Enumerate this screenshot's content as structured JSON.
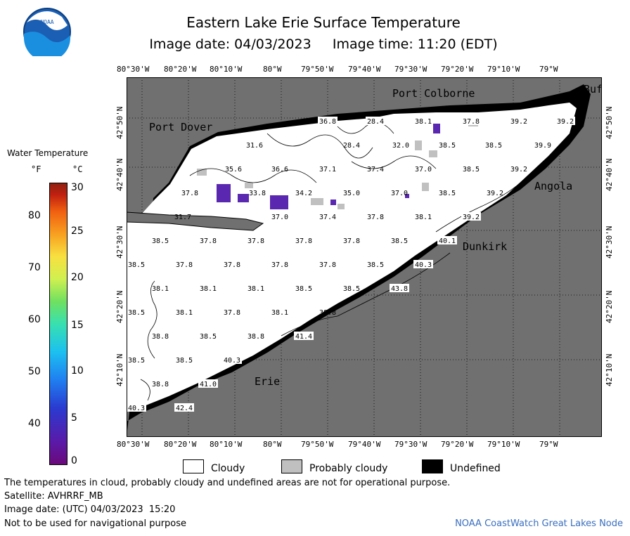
{
  "header": {
    "title": "Eastern Lake Erie Surface Temperature",
    "image_date": "Image date: 04/03/2023",
    "image_time": "Image time: 11:20 (EDT)"
  },
  "logo": {
    "text": "NOAA",
    "icon": "noaa-logo-icon"
  },
  "map": {
    "lon_labels": [
      "80°30'W",
      "80°20'W",
      "80°10'W",
      "80°W",
      "79°50'W",
      "79°40'W",
      "79°30'W",
      "79°20'W",
      "79°10'W",
      "79°W"
    ],
    "lat_labels": [
      "42°50'N",
      "42°40'N",
      "42°30'N",
      "42°20'N",
      "42°10'N"
    ],
    "places": {
      "port_colborne": "Port Colborne",
      "port_dover": "Port Dover",
      "buffalo": "Buf",
      "angola": "Angola",
      "dunkirk": "Dunkirk",
      "erie": "Erie"
    },
    "colors": {
      "land": "#707070",
      "cloud": "#ffffff",
      "probably_cloudy": "#c0c0c0",
      "undefined": "#000000",
      "cold_pixel": "#5a28b0"
    }
  },
  "temperature_labels": {
    "row1": [
      "36.8",
      "28.4",
      "38.1",
      "37.8",
      "39.2",
      "39.2"
    ],
    "row2": [
      "31.6",
      "28.4",
      "32.0",
      "38.5",
      "38.5",
      "39.9"
    ],
    "row3": [
      "35.6",
      "36.6",
      "37.1",
      "37.4",
      "37.0",
      "38.5",
      "39.2"
    ],
    "row4": [
      "37.8",
      "33.8",
      "34.2",
      "35.0",
      "37.0",
      "38.5",
      "39.2"
    ],
    "row5": [
      "31.7",
      "37.0",
      "37.4",
      "37.8",
      "38.1",
      "39.2"
    ],
    "row6": [
      "38.5",
      "37.8",
      "37.8",
      "37.8",
      "37.8",
      "38.5",
      "40.1"
    ],
    "row7": [
      "38.5",
      "37.8",
      "37.8",
      "37.8",
      "37.8",
      "38.5",
      "40.3"
    ],
    "row8": [
      "38.1",
      "38.1",
      "38.1",
      "38.5",
      "38.5",
      "43.8"
    ],
    "row9": [
      "38.5",
      "38.1",
      "37.8",
      "38.1",
      "38.8"
    ],
    "row10": [
      "38.8",
      "38.5",
      "38.8",
      "41.4"
    ],
    "row11": [
      "38.5",
      "38.5",
      "40.3"
    ],
    "row12": [
      "38.8",
      "41.0"
    ],
    "row13": [
      "40.3",
      "42.4"
    ]
  },
  "legend": {
    "title": "Water Temperature",
    "unit_f": "°F",
    "unit_c": "°C",
    "f_ticks": [
      "80",
      "70",
      "60",
      "50",
      "40"
    ],
    "c_ticks": [
      "30",
      "25",
      "20",
      "15",
      "10",
      "5",
      "0"
    ]
  },
  "key": {
    "cloudy": "Cloudy",
    "probably_cloudy": "Probably cloudy",
    "undefined": "Undefined"
  },
  "footer": {
    "disclaimer": "The temperatures in cloud, probably cloudy and undefined areas are not for operational purpose.",
    "satellite": "Satellite: AVHRRF_MB",
    "utc_date": "Image date: (UTC) 04/03/2023  15:20",
    "nav_warning": "Not to be used for navigational purpose",
    "credit": "NOAA CoastWatch Great Lakes Node"
  }
}
